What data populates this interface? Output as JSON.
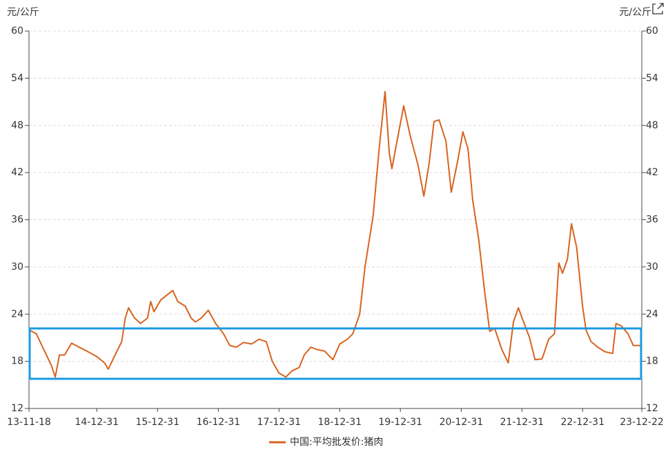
{
  "chart_data": {
    "type": "line",
    "y_label": "元/公斤",
    "y2_label": "元/公斤",
    "x": [
      "2013-11-18",
      "2014-01-01",
      "2014-02-15",
      "2014-04-01",
      "2014-04-25",
      "2014-05-20",
      "2014-06-20",
      "2014-08-01",
      "2014-09-15",
      "2014-11-01",
      "2014-12-31",
      "2015-02-15",
      "2015-03-10",
      "2015-04-15",
      "2015-05-30",
      "2015-06-20",
      "2015-07-10",
      "2015-08-15",
      "2015-09-20",
      "2015-11-01",
      "2015-11-20",
      "2015-12-10",
      "2016-01-20",
      "2016-03-01",
      "2016-04-01",
      "2016-05-01",
      "2016-06-15",
      "2016-07-20",
      "2016-08-15",
      "2016-09-20",
      "2016-11-01",
      "2016-12-15",
      "2017-01-31",
      "2017-03-10",
      "2017-04-20",
      "2017-06-01",
      "2017-07-20",
      "2017-09-01",
      "2017-10-15",
      "2017-11-20",
      "2017-12-31",
      "2018-02-10",
      "2018-03-20",
      "2018-05-01",
      "2018-06-01",
      "2018-07-10",
      "2018-08-15",
      "2018-10-01",
      "2018-11-20",
      "2018-12-31",
      "2019-02-15",
      "2019-03-20",
      "2019-04-30",
      "2019-06-01",
      "2019-07-20",
      "2019-08-25",
      "2019-09-30",
      "2019-10-25",
      "2019-11-10",
      "2019-12-20",
      "2020-01-20",
      "2020-03-01",
      "2020-04-15",
      "2020-05-20",
      "2020-06-20",
      "2020-07-20",
      "2020-08-20",
      "2020-09-30",
      "2020-11-01",
      "2020-12-10",
      "2021-01-10",
      "2021-02-10",
      "2021-03-10",
      "2021-04-15",
      "2021-05-20",
      "2021-06-20",
      "2021-07-20",
      "2021-09-01",
      "2021-10-10",
      "2021-11-10",
      "2021-12-10",
      "2022-01-10",
      "2022-02-15",
      "2022-03-20",
      "2022-05-01",
      "2022-06-10",
      "2022-07-15",
      "2022-08-10",
      "2022-09-01",
      "2022-10-01",
      "2022-10-25",
      "2022-11-25",
      "2022-12-31",
      "2023-01-20",
      "2023-02-20",
      "2023-04-01",
      "2023-05-15",
      "2023-06-30",
      "2023-07-20",
      "2023-08-20",
      "2023-09-30",
      "2023-11-01",
      "2023-12-22"
    ],
    "series": [
      {
        "name": "中国:平均批发价:猪肉",
        "color": "#d9621e",
        "values": [
          22.0,
          21.5,
          19.5,
          17.5,
          16.0,
          18.8,
          18.8,
          20.3,
          19.8,
          19.3,
          18.6,
          17.8,
          17.0,
          18.6,
          20.5,
          23.5,
          24.8,
          23.5,
          22.8,
          23.5,
          25.6,
          24.3,
          25.8,
          26.5,
          27.0,
          25.6,
          25.0,
          23.5,
          23.0,
          23.5,
          24.5,
          22.8,
          21.5,
          20.0,
          19.8,
          20.4,
          20.2,
          20.8,
          20.5,
          18.0,
          16.5,
          16.0,
          16.8,
          17.2,
          18.8,
          19.8,
          19.5,
          19.3,
          18.2,
          20.2,
          20.8,
          21.5,
          24.0,
          30.0,
          36.5,
          45.0,
          52.3,
          44.5,
          42.5,
          47.0,
          50.5,
          46.5,
          43.0,
          39.0,
          43.0,
          48.5,
          48.7,
          46.0,
          39.5,
          43.5,
          47.2,
          45.0,
          38.5,
          33.5,
          27.0,
          21.8,
          22.2,
          19.5,
          17.8,
          23.0,
          24.8,
          23.0,
          21.0,
          18.2,
          18.3,
          20.8,
          21.5,
          30.5,
          29.2,
          31.0,
          35.5,
          32.5,
          25.0,
          22.0,
          20.5,
          19.8,
          19.2,
          19.0,
          22.8,
          22.5,
          21.5,
          20.0,
          20.0
        ]
      }
    ],
    "xlim": [
      "2013-11-18",
      "2023-12-22"
    ],
    "xticks": [
      {
        "value": "2013-11-18",
        "label": "13-11-18"
      },
      {
        "value": "2014-12-31",
        "label": "14-12-31"
      },
      {
        "value": "2015-12-31",
        "label": "15-12-31"
      },
      {
        "value": "2016-12-31",
        "label": "16-12-31"
      },
      {
        "value": "2017-12-31",
        "label": "17-12-31"
      },
      {
        "value": "2018-12-31",
        "label": "18-12-31"
      },
      {
        "value": "2019-12-31",
        "label": "19-12-31"
      },
      {
        "value": "2020-12-31",
        "label": "20-12-31"
      },
      {
        "value": "2021-12-31",
        "label": "21-12-31"
      },
      {
        "value": "2022-12-31",
        "label": "22-12-31"
      },
      {
        "value": "2023-12-22",
        "label": "23-12-22"
      }
    ],
    "ylim": [
      12,
      60
    ],
    "yticks": [
      12,
      18,
      24,
      30,
      36,
      42,
      48,
      54,
      60
    ],
    "grid": true
  }
}
